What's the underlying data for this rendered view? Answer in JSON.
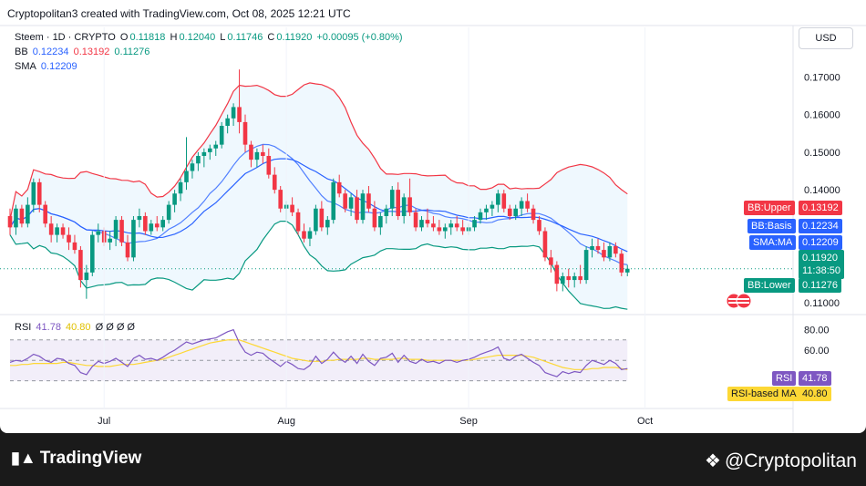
{
  "header": {
    "text": "Cryptopolitan3 created with TradingView.com, Oct 08, 2025 12:21 UTC"
  },
  "currency": "USD",
  "legend": {
    "symbol": "Steem · 1D · CRYPTO",
    "o_label": "O",
    "o": "0.11818",
    "h_label": "H",
    "h": "0.12040",
    "l_label": "L",
    "l": "0.11746",
    "c_label": "C",
    "c": "0.11920",
    "change": "+0.00095 (+0.80%)",
    "bb_label": "BB",
    "bb_basis": "0.12234",
    "bb_upper": "0.13192",
    "bb_lower": "0.11276",
    "sma_label": "SMA",
    "sma": "0.12209"
  },
  "rsi_legend": {
    "label": "RSI",
    "rsi": "41.78",
    "ma": "40.80",
    "extra": "Ø Ø Ø Ø"
  },
  "tags": {
    "bb_upper_label": "BB:Upper",
    "bb_upper_value": "0.13192",
    "bb_basis_label": "BB:Basis",
    "bb_basis_value": "0.12234",
    "sma_label": "SMA:MA",
    "sma_value": "0.12209",
    "price_value": "0.11920",
    "countdown": "11:38:50",
    "bb_lower_label": "BB:Lower",
    "bb_lower_value": "0.11276",
    "rsi_label": "RSI",
    "rsi_value": "41.78",
    "rsi_ma_label": "RSI-based MA",
    "rsi_ma_value": "40.80"
  },
  "footer": {
    "logo": "TradingView",
    "brand": "@Cryptopolitan"
  },
  "colors": {
    "up": "#089981",
    "down": "#f23645",
    "bb_upper": "#f23645",
    "bb_basis": "#2962ff",
    "bb_lower": "#089981",
    "sma": "#2962ff",
    "rsi": "#7e57c2",
    "rsi_ma": "#fdd835"
  },
  "chart_data": {
    "type": "candlestick",
    "y_ticks": [
      "0.17000",
      "0.16000",
      "0.15000",
      "0.14000",
      "0.11000"
    ],
    "ylim": [
      0.1085,
      0.1735
    ],
    "rsi_ticks": [
      "80.00",
      "60.00"
    ],
    "rsi_ylim": [
      10,
      85
    ],
    "x_tick_labels": [
      {
        "label": "Jul",
        "index": 16
      },
      {
        "label": "Aug",
        "index": 47
      },
      {
        "label": "Sep",
        "index": 78
      },
      {
        "label": "Oct",
        "index": 108
      }
    ],
    "candles": [
      [
        0.133,
        0.135,
        0.128,
        0.13
      ],
      [
        0.13,
        0.136,
        0.128,
        0.135
      ],
      [
        0.135,
        0.136,
        0.13,
        0.131
      ],
      [
        0.131,
        0.138,
        0.13,
        0.136
      ],
      [
        0.136,
        0.143,
        0.134,
        0.142
      ],
      [
        0.142,
        0.143,
        0.134,
        0.136
      ],
      [
        0.136,
        0.137,
        0.13,
        0.131
      ],
      [
        0.131,
        0.133,
        0.126,
        0.128
      ],
      [
        0.128,
        0.131,
        0.126,
        0.13
      ],
      [
        0.13,
        0.131,
        0.127,
        0.128
      ],
      [
        0.128,
        0.13,
        0.124,
        0.126
      ],
      [
        0.126,
        0.128,
        0.123,
        0.124
      ],
      [
        0.124,
        0.125,
        0.114,
        0.116
      ],
      [
        0.116,
        0.12,
        0.111,
        0.118
      ],
      [
        0.118,
        0.129,
        0.117,
        0.128
      ],
      [
        0.128,
        0.131,
        0.126,
        0.129
      ],
      [
        0.129,
        0.13,
        0.125,
        0.126
      ],
      [
        0.126,
        0.129,
        0.124,
        0.127
      ],
      [
        0.127,
        0.133,
        0.125,
        0.132
      ],
      [
        0.132,
        0.133,
        0.125,
        0.126
      ],
      [
        0.126,
        0.128,
        0.121,
        0.122
      ],
      [
        0.122,
        0.133,
        0.121,
        0.132
      ],
      [
        0.132,
        0.135,
        0.13,
        0.133
      ],
      [
        0.133,
        0.134,
        0.128,
        0.129
      ],
      [
        0.129,
        0.132,
        0.128,
        0.131
      ],
      [
        0.131,
        0.133,
        0.129,
        0.13
      ],
      [
        0.13,
        0.133,
        0.129,
        0.132
      ],
      [
        0.132,
        0.137,
        0.131,
        0.136
      ],
      [
        0.136,
        0.14,
        0.134,
        0.139
      ],
      [
        0.139,
        0.143,
        0.137,
        0.142
      ],
      [
        0.142,
        0.154,
        0.14,
        0.145
      ],
      [
        0.145,
        0.148,
        0.143,
        0.147
      ],
      [
        0.147,
        0.15,
        0.145,
        0.149
      ],
      [
        0.149,
        0.151,
        0.146,
        0.15
      ],
      [
        0.15,
        0.152,
        0.148,
        0.151
      ],
      [
        0.151,
        0.153,
        0.149,
        0.152
      ],
      [
        0.152,
        0.158,
        0.151,
        0.157
      ],
      [
        0.157,
        0.16,
        0.155,
        0.159
      ],
      [
        0.159,
        0.163,
        0.157,
        0.162
      ],
      [
        0.162,
        0.172,
        0.155,
        0.158
      ],
      [
        0.158,
        0.16,
        0.15,
        0.152
      ],
      [
        0.152,
        0.153,
        0.146,
        0.148
      ],
      [
        0.148,
        0.151,
        0.146,
        0.15
      ],
      [
        0.15,
        0.152,
        0.147,
        0.149
      ],
      [
        0.149,
        0.151,
        0.143,
        0.144
      ],
      [
        0.144,
        0.146,
        0.139,
        0.14
      ],
      [
        0.14,
        0.141,
        0.134,
        0.135
      ],
      [
        0.135,
        0.137,
        0.132,
        0.136
      ],
      [
        0.136,
        0.138,
        0.133,
        0.134
      ],
      [
        0.134,
        0.135,
        0.128,
        0.129
      ],
      [
        0.129,
        0.131,
        0.126,
        0.127
      ],
      [
        0.127,
        0.13,
        0.125,
        0.129
      ],
      [
        0.129,
        0.136,
        0.128,
        0.135
      ],
      [
        0.135,
        0.137,
        0.129,
        0.13
      ],
      [
        0.13,
        0.133,
        0.128,
        0.132
      ],
      [
        0.132,
        0.143,
        0.131,
        0.142
      ],
      [
        0.142,
        0.144,
        0.138,
        0.139
      ],
      [
        0.139,
        0.14,
        0.134,
        0.135
      ],
      [
        0.135,
        0.139,
        0.133,
        0.138
      ],
      [
        0.138,
        0.14,
        0.131,
        0.132
      ],
      [
        0.132,
        0.14,
        0.131,
        0.139
      ],
      [
        0.139,
        0.141,
        0.134,
        0.135
      ],
      [
        0.135,
        0.137,
        0.129,
        0.13
      ],
      [
        0.13,
        0.134,
        0.128,
        0.133
      ],
      [
        0.133,
        0.136,
        0.131,
        0.135
      ],
      [
        0.135,
        0.141,
        0.133,
        0.14
      ],
      [
        0.14,
        0.142,
        0.132,
        0.133
      ],
      [
        0.133,
        0.139,
        0.131,
        0.138
      ],
      [
        0.138,
        0.143,
        0.133,
        0.134
      ],
      [
        0.134,
        0.135,
        0.129,
        0.13
      ],
      [
        0.13,
        0.133,
        0.129,
        0.132
      ],
      [
        0.132,
        0.135,
        0.13,
        0.131
      ],
      [
        0.131,
        0.133,
        0.129,
        0.13
      ],
      [
        0.13,
        0.132,
        0.128,
        0.129
      ],
      [
        0.129,
        0.131,
        0.127,
        0.13
      ],
      [
        0.13,
        0.132,
        0.128,
        0.131
      ],
      [
        0.131,
        0.133,
        0.129,
        0.13
      ],
      [
        0.13,
        0.132,
        0.128,
        0.129
      ],
      [
        0.129,
        0.131,
        0.128,
        0.13
      ],
      [
        0.13,
        0.133,
        0.129,
        0.132
      ],
      [
        0.132,
        0.135,
        0.131,
        0.134
      ],
      [
        0.134,
        0.136,
        0.132,
        0.135
      ],
      [
        0.135,
        0.137,
        0.133,
        0.136
      ],
      [
        0.136,
        0.14,
        0.134,
        0.139
      ],
      [
        0.139,
        0.14,
        0.134,
        0.135
      ],
      [
        0.135,
        0.136,
        0.132,
        0.133
      ],
      [
        0.133,
        0.136,
        0.132,
        0.135
      ],
      [
        0.135,
        0.138,
        0.133,
        0.137
      ],
      [
        0.137,
        0.139,
        0.134,
        0.135
      ],
      [
        0.135,
        0.136,
        0.131,
        0.132
      ],
      [
        0.132,
        0.133,
        0.128,
        0.129
      ],
      [
        0.129,
        0.13,
        0.121,
        0.122
      ],
      [
        0.122,
        0.124,
        0.118,
        0.12
      ],
      [
        0.12,
        0.121,
        0.113,
        0.115
      ],
      [
        0.115,
        0.118,
        0.113,
        0.117
      ],
      [
        0.117,
        0.119,
        0.114,
        0.116
      ],
      [
        0.116,
        0.118,
        0.114,
        0.117
      ],
      [
        0.117,
        0.12,
        0.115,
        0.116
      ],
      [
        0.116,
        0.125,
        0.115,
        0.124
      ],
      [
        0.124,
        0.127,
        0.122,
        0.125
      ],
      [
        0.125,
        0.127,
        0.123,
        0.124
      ],
      [
        0.124,
        0.126,
        0.121,
        0.122
      ],
      [
        0.122,
        0.126,
        0.121,
        0.125
      ],
      [
        0.125,
        0.126,
        0.122,
        0.123
      ],
      [
        0.123,
        0.124,
        0.117,
        0.118
      ],
      [
        0.118,
        0.12,
        0.117,
        0.119
      ]
    ],
    "rsi_values": [
      48,
      50,
      49,
      52,
      56,
      54,
      50,
      48,
      52,
      51,
      47,
      45,
      38,
      36,
      44,
      49,
      47,
      49,
      52,
      48,
      44,
      52,
      55,
      51,
      52,
      50,
      53,
      57,
      60,
      64,
      68,
      66,
      68,
      70,
      71,
      72,
      75,
      78,
      80,
      67,
      58,
      55,
      58,
      57,
      52,
      48,
      44,
      49,
      46,
      42,
      41,
      45,
      54,
      47,
      51,
      58,
      52,
      48,
      54,
      47,
      56,
      49,
      45,
      52,
      53,
      57,
      48,
      55,
      49,
      47,
      51,
      48,
      49,
      47,
      50,
      50,
      48,
      50,
      51,
      53,
      56,
      58,
      60,
      63,
      52,
      50,
      54,
      56,
      52,
      48,
      45,
      38,
      36,
      34,
      39,
      37,
      39,
      38,
      45,
      50,
      48,
      46,
      50,
      47,
      41,
      42
    ],
    "rsi_ma_values": [
      45,
      45,
      46,
      46,
      47,
      47,
      47,
      47,
      47,
      48,
      48,
      47,
      46,
      45,
      45,
      44,
      44,
      44,
      45,
      46,
      46,
      46,
      47,
      48,
      49,
      50,
      51,
      53,
      55,
      57,
      59,
      61,
      63,
      65,
      67,
      68,
      69,
      70,
      70,
      70,
      68,
      66,
      64,
      62,
      60,
      58,
      56,
      54,
      52,
      51,
      50,
      49,
      49,
      49,
      50,
      50,
      51,
      51,
      51,
      51,
      52,
      52,
      51,
      51,
      51,
      51,
      52,
      52,
      51,
      51,
      51,
      50,
      50,
      50,
      50,
      50,
      50,
      50,
      50,
      51,
      52,
      53,
      54,
      55,
      55,
      55,
      55,
      55,
      54,
      53,
      51,
      49,
      47,
      45,
      43,
      42,
      41,
      41,
      41,
      42,
      42,
      43,
      43,
      43,
      42,
      41
    ]
  }
}
